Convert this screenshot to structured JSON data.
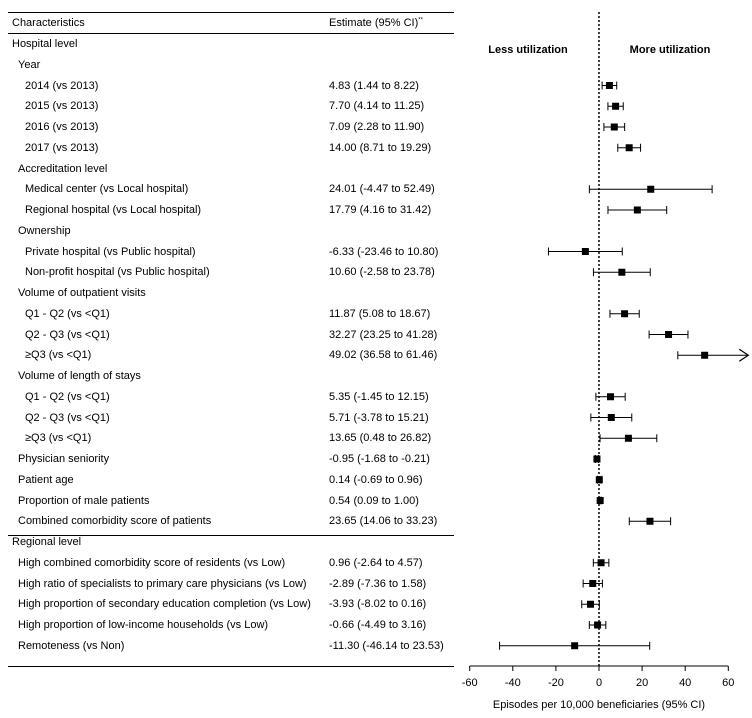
{
  "table": {
    "col1_header": "Characteristics",
    "col2_header": "Estimate (95% CI)",
    "col2_header_sup": "**"
  },
  "rows": [
    {
      "label": "Hospital level",
      "indent": 0
    },
    {
      "label": "Year",
      "indent": 1
    },
    {
      "label": "2014 (vs 2013)",
      "indent": 2,
      "estimate_text": "4.83 (1.44 to 8.22)",
      "est": 4.83,
      "lo": 1.44,
      "hi": 8.22
    },
    {
      "label": "2015 (vs 2013)",
      "indent": 2,
      "estimate_text": "7.70 (4.14 to 11.25)",
      "est": 7.7,
      "lo": 4.14,
      "hi": 11.25
    },
    {
      "label": "2016 (vs 2013)",
      "indent": 2,
      "estimate_text": "7.09 (2.28 to 11.90)",
      "est": 7.09,
      "lo": 2.28,
      "hi": 11.9
    },
    {
      "label": "2017 (vs 2013)",
      "indent": 2,
      "estimate_text": "14.00 (8.71 to 19.29)",
      "est": 14.0,
      "lo": 8.71,
      "hi": 19.29
    },
    {
      "label": "Accreditation level",
      "indent": 1
    },
    {
      "label": "Medical center (vs Local hospital)",
      "indent": 2,
      "estimate_text": "24.01 (-4.47 to 52.49)",
      "est": 24.01,
      "lo": -4.47,
      "hi": 52.49
    },
    {
      "label": "Regional hospital (vs Local hospital)",
      "indent": 2,
      "estimate_text": "17.79 (4.16 to 31.42)",
      "est": 17.79,
      "lo": 4.16,
      "hi": 31.42
    },
    {
      "label": "Ownership",
      "indent": 1
    },
    {
      "label": "Private hospital (vs Public hospital)",
      "indent": 2,
      "estimate_text": "-6.33 (-23.46 to 10.80)",
      "est": -6.33,
      "lo": -23.46,
      "hi": 10.8
    },
    {
      "label": "Non-profit hospital (vs Public hospital)",
      "indent": 2,
      "estimate_text": "10.60 (-2.58 to 23.78)",
      "est": 10.6,
      "lo": -2.58,
      "hi": 23.78
    },
    {
      "label": "Volume of outpatient visits",
      "indent": 1
    },
    {
      "label": "Q1 - Q2 (vs <Q1)",
      "indent": 2,
      "estimate_text": "11.87 (5.08 to 18.67)",
      "est": 11.87,
      "lo": 5.08,
      "hi": 18.67
    },
    {
      "label": "Q2 - Q3 (vs <Q1)",
      "indent": 2,
      "estimate_text": "32.27 (23.25 to 41.28)",
      "est": 32.27,
      "lo": 23.25,
      "hi": 41.28
    },
    {
      "label": "≥Q3  (vs <Q1)",
      "indent": 2,
      "estimate_text": "49.02 (36.58 to 61.46)",
      "est": 49.02,
      "lo": 36.58,
      "hi": 61.46
    },
    {
      "label": "Volume of length of stays",
      "indent": 1
    },
    {
      "label": "Q1 - Q2 (vs <Q1)",
      "indent": 2,
      "estimate_text": "5.35 (-1.45 to 12.15)",
      "est": 5.35,
      "lo": -1.45,
      "hi": 12.15
    },
    {
      "label": "Q2 - Q3 (vs <Q1)",
      "indent": 2,
      "estimate_text": "5.71 (-3.78 to 15.21)",
      "est": 5.71,
      "lo": -3.78,
      "hi": 15.21
    },
    {
      "label": "≥Q3  (vs <Q1)",
      "indent": 2,
      "estimate_text": "13.65 (0.48 to 26.82)",
      "est": 13.65,
      "lo": 0.48,
      "hi": 26.82
    },
    {
      "label": "Physician seniority",
      "indent": 1,
      "estimate_text": "-0.95 (-1.68 to -0.21)",
      "est": -0.95,
      "lo": -1.68,
      "hi": -0.21
    },
    {
      "label": "Patient age",
      "indent": 1,
      "estimate_text": "0.14 (-0.69 to 0.96)",
      "est": 0.14,
      "lo": -0.69,
      "hi": 0.96
    },
    {
      "label": "Proportion of male patients",
      "indent": 1,
      "estimate_text": "0.54 (0.09 to 1.00)",
      "est": 0.54,
      "lo": 0.09,
      "hi": 1.0
    },
    {
      "label": "Combined comorbidity score of patients",
      "indent": 1,
      "estimate_text": "23.65 (14.06 to 33.23)",
      "est": 23.65,
      "lo": 14.06,
      "hi": 33.23
    },
    {
      "label": "Regional level",
      "indent": 0
    },
    {
      "label": "High combined comorbidity score of residents (vs Low)",
      "indent": 1,
      "estimate_text": "0.96 (-2.64 to 4.57)",
      "est": 0.96,
      "lo": -2.64,
      "hi": 4.57
    },
    {
      "label": "High ratio of specialists to primary care physicians (vs Low)",
      "indent": 1,
      "estimate_text": "-2.89 (-7.36 to 1.58)",
      "est": -2.89,
      "lo": -7.36,
      "hi": 1.58
    },
    {
      "label": "High proportion of secondary education completion (vs Low)",
      "indent": 1,
      "estimate_text": "-3.93 (-8.02 to 0.16)",
      "est": -3.93,
      "lo": -8.02,
      "hi": 0.16
    },
    {
      "label": "High proportion of low-income households (vs Low)",
      "indent": 1,
      "estimate_text": "-0.66 (-4.49 to 3.16)",
      "est": -0.66,
      "lo": -4.49,
      "hi": 3.16
    },
    {
      "label": "Remoteness (vs Non)",
      "indent": 1,
      "estimate_text": "-11.30 (-46.14 to 23.53)",
      "est": -11.3,
      "lo": -46.14,
      "hi": 23.53
    }
  ],
  "chart_data": {
    "type": "forest",
    "xlabel": "Episodes per 10,000 beneficiaries (95% CI)",
    "xlim": [
      -60,
      60
    ],
    "xticks": [
      -60,
      -40,
      -20,
      0,
      20,
      40,
      60
    ],
    "reference_line": 0,
    "left_side_label": "Less utilization",
    "right_side_label": "More utilization",
    "truncated_rows_arrow": [
      "≥Q3  (vs <Q1)"
    ]
  },
  "colors": {
    "ink": "#000000",
    "background": "#ffffff"
  }
}
